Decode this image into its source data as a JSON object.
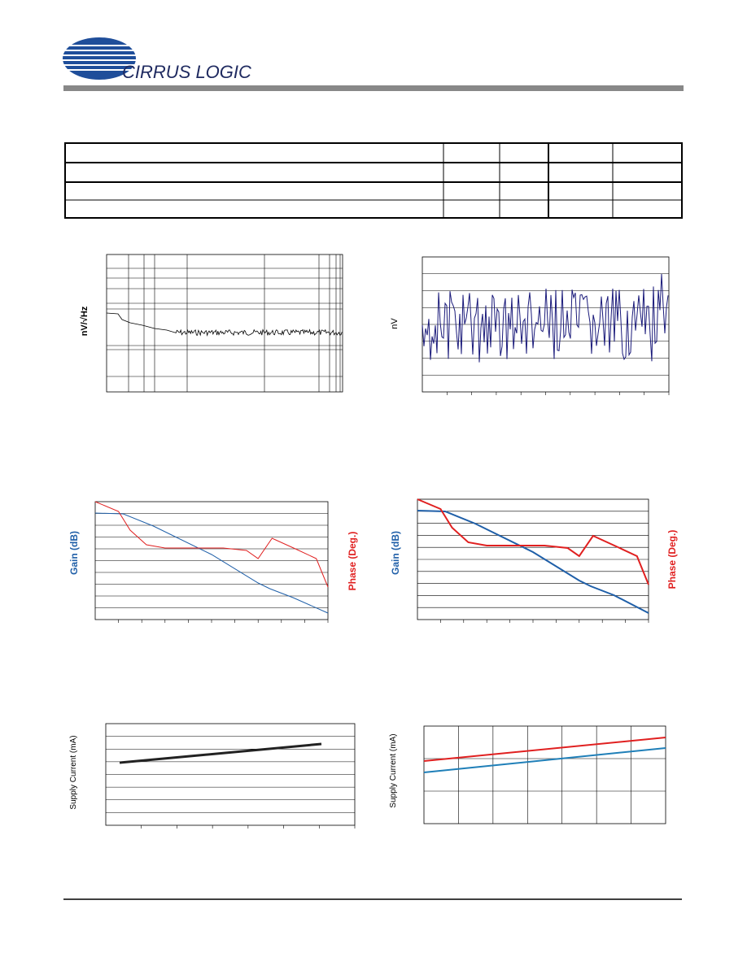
{
  "header": {
    "logo_text": "CIRRUS LOGIC"
  },
  "charts": [
    {
      "y_label": "nV/√Hz"
    },
    {
      "y_label": "nV"
    },
    {
      "y_label": "Gain (dB)",
      "y2_label": "Phase (Deg.)"
    },
    {
      "y_label": "Gain (dB)",
      "y2_label": "Phase (Deg.)"
    },
    {
      "y_label": "Supply Current (mA)"
    },
    {
      "y_label": "Supply Current (mA)"
    }
  ]
}
